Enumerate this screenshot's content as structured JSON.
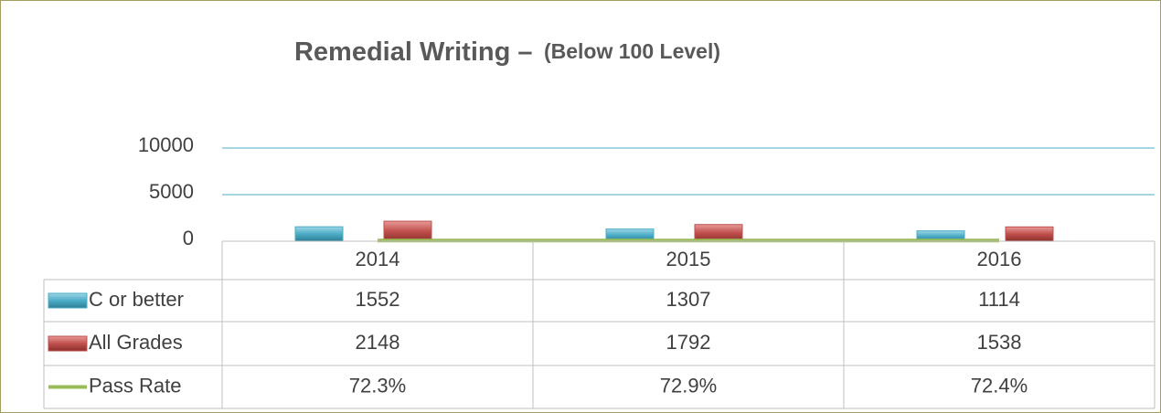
{
  "chart_data": {
    "type": "bar",
    "title": "Remedial Writing –",
    "subtitle": "(Below 100 Level)",
    "categories": [
      "2014",
      "2015",
      "2016"
    ],
    "series": [
      {
        "name": "C or better",
        "color": "#4bacc6",
        "type": "bar",
        "values": [
          1552,
          1307,
          1114
        ]
      },
      {
        "name": "All Grades",
        "color": "#c0504d",
        "type": "bar",
        "values": [
          2148,
          1792,
          1538
        ]
      },
      {
        "name": "Pass Rate",
        "color": "#9bbb59",
        "type": "line",
        "values": [
          72.3,
          72.9,
          72.4
        ],
        "value_labels": [
          "72.3%",
          "72.9%",
          "72.4%"
        ]
      }
    ],
    "ylim": [
      0,
      10000
    ],
    "yticks": [
      0,
      5000,
      10000
    ],
    "grid": true,
    "data_table": true
  }
}
